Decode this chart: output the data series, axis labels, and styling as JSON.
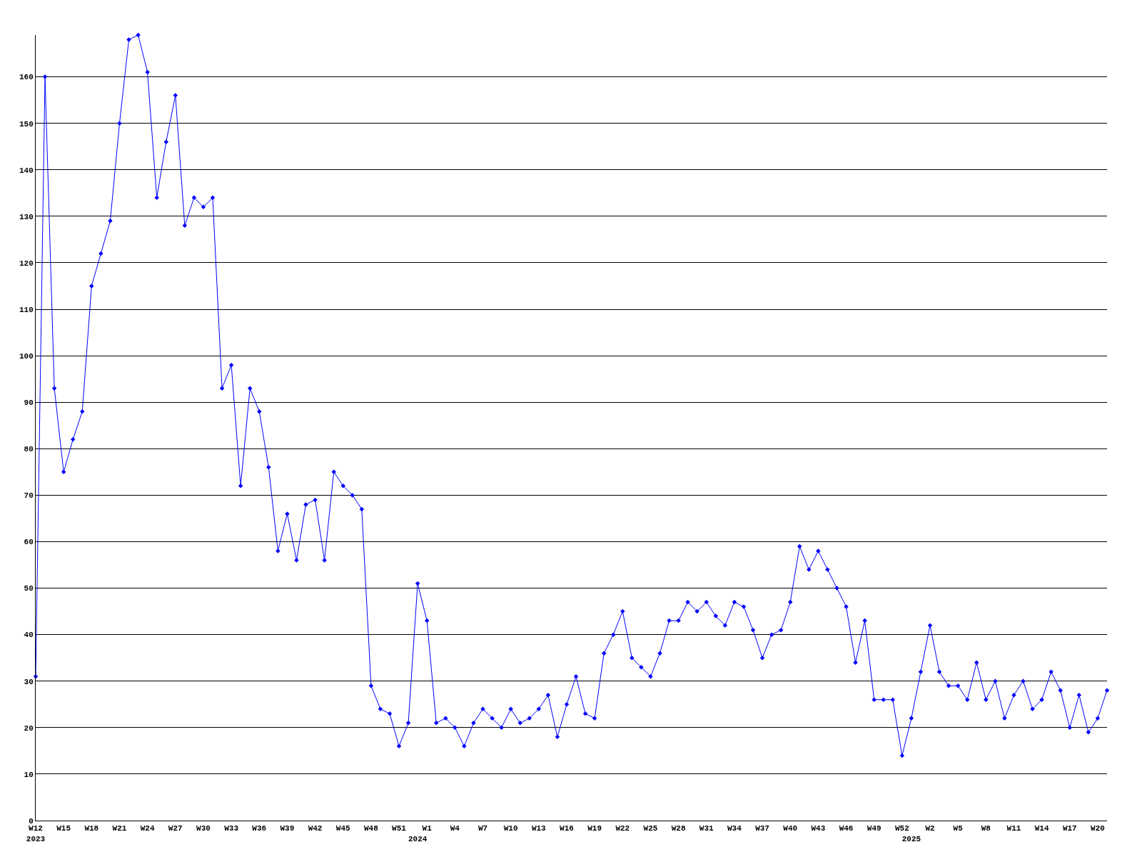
{
  "chart_data": {
    "type": "line",
    "categories": [
      "W12\n2023",
      null,
      null,
      "W15",
      null,
      null,
      "W18",
      null,
      null,
      "W21",
      null,
      null,
      "W24",
      null,
      null,
      "W27",
      null,
      null,
      "W30",
      null,
      null,
      "W33",
      null,
      null,
      "W36",
      null,
      null,
      "W39",
      null,
      null,
      "W42",
      null,
      null,
      "W45",
      null,
      null,
      "W48",
      null,
      null,
      "W51",
      null,
      "\n2024",
      "W1",
      null,
      null,
      "W4",
      null,
      null,
      "W7",
      null,
      null,
      "W10",
      null,
      null,
      "W13",
      null,
      null,
      "W16",
      null,
      null,
      "W19",
      null,
      null,
      "W22",
      null,
      null,
      "W25",
      null,
      null,
      "W28",
      null,
      null,
      "W31",
      null,
      null,
      "W34",
      null,
      null,
      "W37",
      null,
      null,
      "W40",
      null,
      null,
      "W43",
      null,
      null,
      "W46",
      null,
      null,
      "W49",
      null,
      null,
      "W52",
      "\n2025",
      null,
      "W2",
      null,
      null,
      "W5",
      null,
      null,
      "W8",
      null,
      null,
      "W11",
      null,
      null,
      "W14",
      null,
      null,
      "W17",
      null,
      null,
      "W20",
      null
    ],
    "series": [
      {
        "color": "#0000ff",
        "values": [
          31,
          160,
          93,
          75,
          82,
          88,
          115,
          122,
          129,
          150,
          168,
          169,
          161,
          134,
          146,
          156,
          128,
          134,
          132,
          134,
          93,
          98,
          72,
          93,
          88,
          76,
          58,
          66,
          56,
          68,
          69,
          56,
          75,
          72,
          70,
          67,
          29,
          24,
          23,
          16,
          21,
          51,
          43,
          21,
          22,
          20,
          16,
          21,
          24,
          22,
          20,
          24,
          21,
          22,
          24,
          27,
          18,
          25,
          31,
          23,
          22,
          36,
          40,
          45,
          35,
          33,
          31,
          36,
          43,
          43,
          47,
          45,
          47,
          44,
          42,
          47,
          46,
          41,
          35,
          40,
          41,
          47,
          59,
          54,
          58,
          54,
          50,
          46,
          34,
          43,
          26,
          26,
          26,
          14,
          22,
          32,
          42,
          32,
          29,
          29,
          26,
          34,
          26,
          30,
          22,
          27,
          30,
          24,
          26,
          32,
          28,
          20,
          27,
          19,
          22,
          28
        ]
      }
    ],
    "ylim": [
      0,
      169
    ],
    "yticks": [
      0,
      10,
      20,
      30,
      40,
      50,
      60,
      70,
      80,
      90,
      100,
      110,
      120,
      130,
      140,
      150,
      160
    ],
    "grid": "y",
    "legend": false,
    "marker": "diamond",
    "line_style": "solid"
  }
}
